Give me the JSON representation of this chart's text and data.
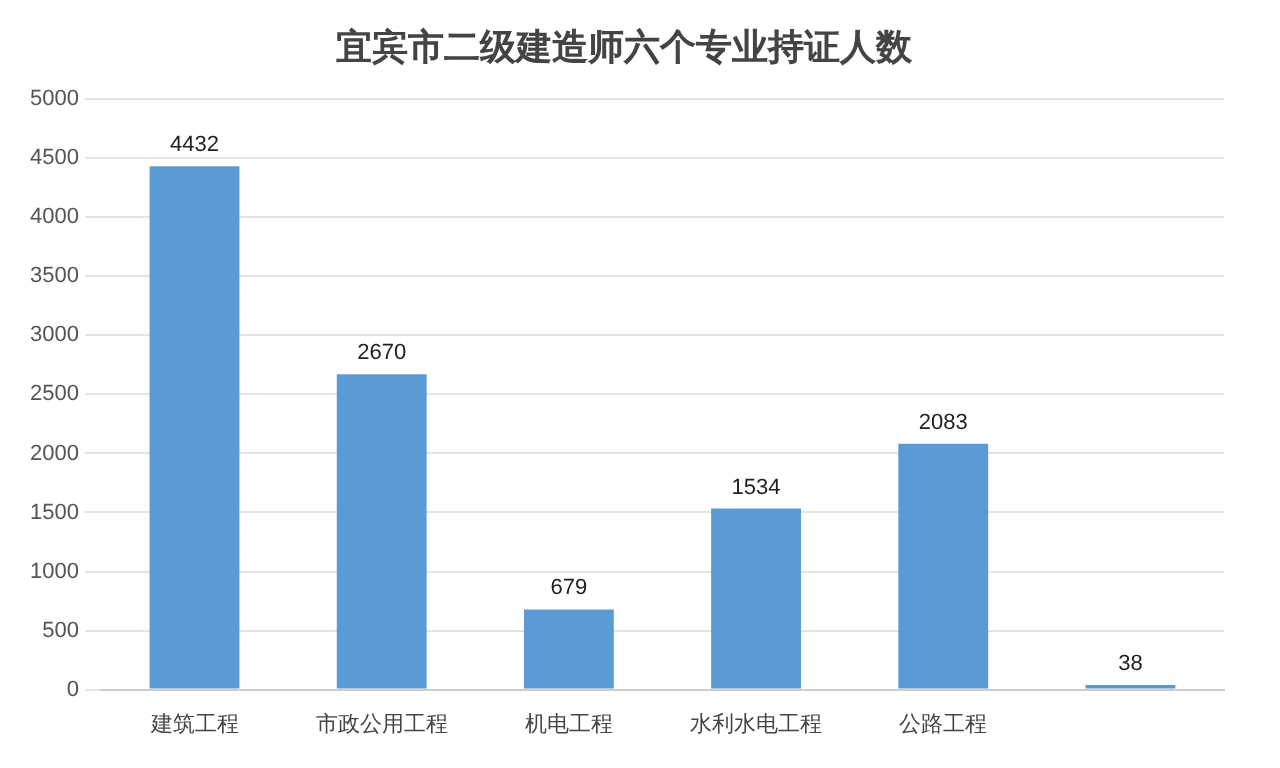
{
  "chart_data": {
    "type": "bar",
    "title": "宜宾市二级建造师六个专业持证人数",
    "categories": [
      "建筑工程",
      "市政公用工程",
      "机电工程",
      "水利水电工程",
      "公路工程",
      null
    ],
    "values": [
      4432,
      2670,
      679,
      1534,
      2083,
      38
    ],
    "color": "#5b9bd5",
    "ylim": [
      0,
      5000
    ],
    "yticks": [
      0,
      500,
      1000,
      1500,
      2000,
      2500,
      3000,
      3500,
      4000,
      4500,
      5000
    ],
    "grid": "y",
    "data_labels": true,
    "legend": false
  }
}
